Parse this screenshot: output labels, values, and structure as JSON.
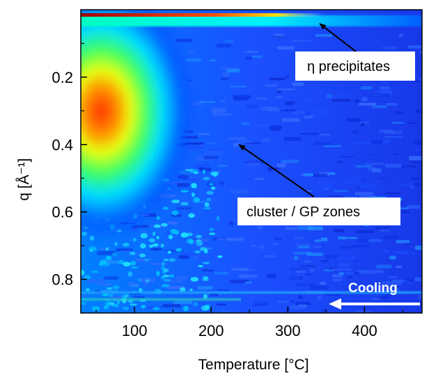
{
  "chart_data": {
    "type": "heatmap",
    "xlabel": "Temperature [°C]",
    "ylabel": "q [Å⁻¹]",
    "x_ticks": [
      100,
      200,
      300,
      400
    ],
    "y_ticks": [
      "0.2",
      "0.4",
      "0.6",
      "0.8"
    ],
    "xlim": [
      30,
      475
    ],
    "ylim": [
      0.0,
      0.9
    ],
    "y_inverted": true,
    "colormap": [
      "#00008f",
      "#0000ff",
      "#0080ff",
      "#00ffff",
      "#80ff80",
      "#ffff00",
      "#ff8000",
      "#ff0000",
      "#800000"
    ],
    "features": [
      {
        "name": "eta_precipitates_line",
        "q": 0.02,
        "x_from": 30,
        "x_to": 340
      },
      {
        "name": "cluster_gp_zones_peak",
        "q": 0.31,
        "x_center": 55
      }
    ],
    "annotations": [
      {
        "label": "η precipitates",
        "arrow_to": {
          "x": 340,
          "q": 0.03
        }
      },
      {
        "label": "cluster / GP zones",
        "arrow_to": {
          "x": 235,
          "q": 0.4
        }
      },
      {
        "label": "Cooling",
        "arrow_direction": "left",
        "color": "#ffffff"
      }
    ]
  }
}
